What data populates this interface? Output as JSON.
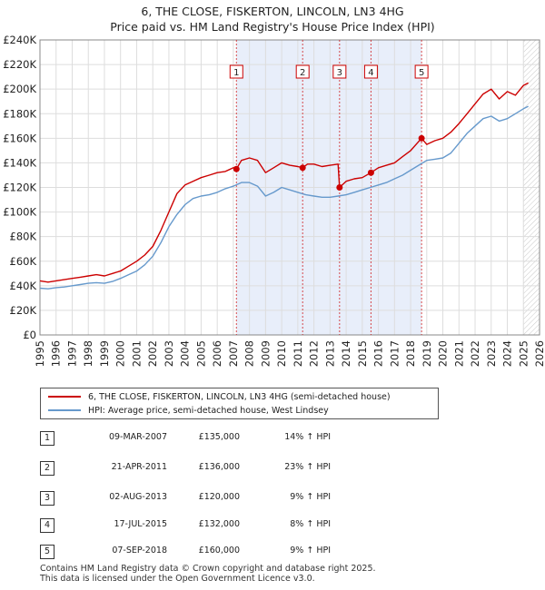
{
  "title": {
    "line1": "6, THE CLOSE, FISKERTON, LINCOLN, LN3 4HG",
    "line2": "Price paid vs. HM Land Registry's House Price Index (HPI)"
  },
  "colors": {
    "property": "#cc0000",
    "hpi": "#6699cc",
    "shade": "#e8eefa",
    "marker_box": "#cc0000"
  },
  "legend": {
    "property_label": "6, THE CLOSE, FISKERTON, LINCOLN, LN3 4HG (semi-detached house)",
    "hpi_label": "HPI: Average price, semi-detached house, West Lindsey"
  },
  "sales": [
    {
      "num": "1",
      "date": "09-MAR-2007",
      "price": "£135,000",
      "hpi": "14% ↑ HPI"
    },
    {
      "num": "2",
      "date": "21-APR-2011",
      "price": "£136,000",
      "hpi": "23% ↑ HPI"
    },
    {
      "num": "3",
      "date": "02-AUG-2013",
      "price": "£120,000",
      "hpi": "9% ↑ HPI"
    },
    {
      "num": "4",
      "date": "17-JUL-2015",
      "price": "£132,000",
      "hpi": "8% ↑ HPI"
    },
    {
      "num": "5",
      "date": "07-SEP-2018",
      "price": "£160,000",
      "hpi": "9% ↑ HPI"
    }
  ],
  "footer": {
    "line1": "Contains HM Land Registry data © Crown copyright and database right 2025.",
    "line2": "This data is licensed under the Open Government Licence v3.0."
  },
  "chart_data": {
    "type": "line",
    "xlim": [
      1995,
      2026
    ],
    "ylim": [
      0,
      240000
    ],
    "x_ticks": [
      "1995",
      "1996",
      "1997",
      "1998",
      "1999",
      "2000",
      "2001",
      "2002",
      "2003",
      "2004",
      "2005",
      "2006",
      "2007",
      "2008",
      "2009",
      "2010",
      "2011",
      "2012",
      "2013",
      "2014",
      "2015",
      "2016",
      "2017",
      "2018",
      "2019",
      "2020",
      "2021",
      "2022",
      "2023",
      "2024",
      "2025",
      "2026"
    ],
    "y_ticks": [
      {
        "value": 0,
        "label": "£0"
      },
      {
        "value": 20000,
        "label": "£20K"
      },
      {
        "value": 40000,
        "label": "£40K"
      },
      {
        "value": 60000,
        "label": "£60K"
      },
      {
        "value": 80000,
        "label": "£80K"
      },
      {
        "value": 100000,
        "label": "£100K"
      },
      {
        "value": 120000,
        "label": "£120K"
      },
      {
        "value": 140000,
        "label": "£140K"
      },
      {
        "value": 160000,
        "label": "£160K"
      },
      {
        "value": 180000,
        "label": "£180K"
      },
      {
        "value": 200000,
        "label": "£200K"
      },
      {
        "value": 220000,
        "label": "£220K"
      },
      {
        "value": 240000,
        "label": "£240K"
      }
    ],
    "grid": true,
    "shaded_ranges": [
      [
        2007.19,
        2018.68
      ]
    ],
    "projection_start": 2025.0,
    "sale_markers": [
      {
        "label": "1",
        "x": 2007.19,
        "y": 135000
      },
      {
        "label": "2",
        "x": 2011.3,
        "y": 136000
      },
      {
        "label": "3",
        "x": 2013.59,
        "y": 120000
      },
      {
        "label": "4",
        "x": 2015.54,
        "y": 132000
      },
      {
        "label": "5",
        "x": 2018.68,
        "y": 160000
      }
    ],
    "series": [
      {
        "name": "6, THE CLOSE, FISKERTON, LINCOLN, LN3 4HG (semi-detached house)",
        "x": [
          1995.0,
          1995.5,
          1996.0,
          1996.5,
          1997.0,
          1997.5,
          1998.0,
          1998.5,
          1999.0,
          1999.5,
          2000.0,
          2000.5,
          2001.0,
          2001.5,
          2002.0,
          2002.5,
          2003.0,
          2003.5,
          2004.0,
          2004.5,
          2005.0,
          2005.5,
          2006.0,
          2006.5,
          2007.0,
          2007.19,
          2007.5,
          2008.0,
          2008.5,
          2009.0,
          2009.5,
          2010.0,
          2010.5,
          2011.0,
          2011.3,
          2011.6,
          2012.0,
          2012.5,
          2013.0,
          2013.5,
          2013.59,
          2014.0,
          2014.5,
          2015.0,
          2015.54,
          2016.0,
          2016.5,
          2017.0,
          2017.5,
          2018.0,
          2018.68,
          2019.0,
          2019.5,
          2020.0,
          2020.5,
          2021.0,
          2021.5,
          2022.0,
          2022.5,
          2023.0,
          2023.5,
          2024.0,
          2024.5,
          2025.0,
          2025.3
        ],
        "y": [
          44000,
          43000,
          44000,
          45000,
          46000,
          47000,
          48000,
          49000,
          48000,
          50000,
          52000,
          56000,
          60000,
          65000,
          72000,
          85000,
          100000,
          115000,
          122000,
          125000,
          128000,
          130000,
          132000,
          133000,
          136000,
          135000,
          142000,
          144000,
          142000,
          132000,
          136000,
          140000,
          138000,
          137000,
          136000,
          139000,
          139000,
          137000,
          138000,
          139000,
          120000,
          125000,
          127000,
          128000,
          132000,
          136000,
          138000,
          140000,
          145000,
          150000,
          160000,
          155000,
          158000,
          160000,
          165000,
          172000,
          180000,
          188000,
          196000,
          200000,
          192000,
          198000,
          195000,
          203000,
          205000
        ]
      },
      {
        "name": "HPI: Average price, semi-detached house, West Lindsey",
        "x": [
          1995.0,
          1995.5,
          1996.0,
          1996.5,
          1997.0,
          1997.5,
          1998.0,
          1998.5,
          1999.0,
          1999.5,
          2000.0,
          2000.5,
          2001.0,
          2001.5,
          2002.0,
          2002.5,
          2003.0,
          2003.5,
          2004.0,
          2004.5,
          2005.0,
          2005.5,
          2006.0,
          2006.5,
          2007.0,
          2007.5,
          2008.0,
          2008.5,
          2009.0,
          2009.5,
          2010.0,
          2010.5,
          2011.0,
          2011.5,
          2012.0,
          2012.5,
          2013.0,
          2013.5,
          2014.0,
          2014.5,
          2015.0,
          2015.5,
          2016.0,
          2016.5,
          2017.0,
          2017.5,
          2018.0,
          2018.5,
          2019.0,
          2019.5,
          2020.0,
          2020.5,
          2021.0,
          2021.5,
          2022.0,
          2022.5,
          2023.0,
          2023.5,
          2024.0,
          2024.5,
          2025.0,
          2025.3
        ],
        "y": [
          38000,
          37500,
          38500,
          39000,
          40000,
          41000,
          42000,
          42500,
          42000,
          43500,
          46000,
          49000,
          52000,
          57000,
          64000,
          75000,
          88000,
          98000,
          106000,
          111000,
          113000,
          114000,
          116000,
          119000,
          121000,
          124000,
          124000,
          121000,
          113000,
          116000,
          120000,
          118000,
          116000,
          114000,
          113000,
          112000,
          112000,
          113000,
          114000,
          116000,
          118000,
          120000,
          122000,
          124000,
          127000,
          130000,
          134000,
          138000,
          142000,
          143000,
          144000,
          148000,
          156000,
          164000,
          170000,
          176000,
          178000,
          174000,
          176000,
          180000,
          184000,
          186000
        ]
      }
    ]
  }
}
